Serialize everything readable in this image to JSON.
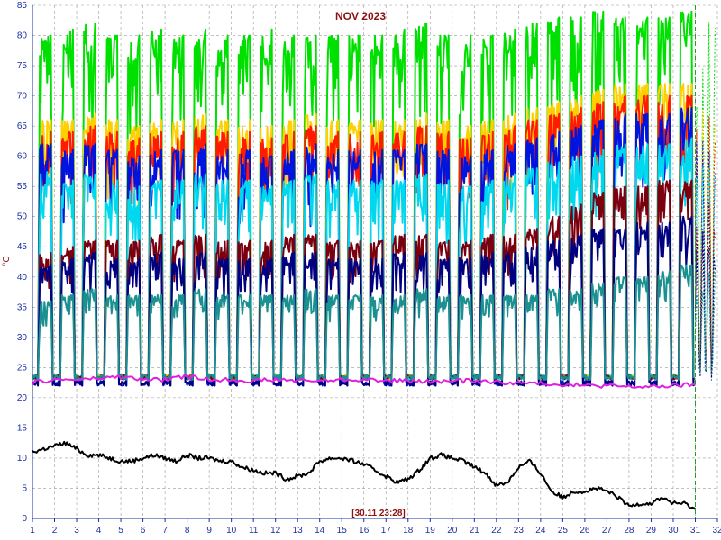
{
  "chart_data": {
    "type": "line",
    "title": "NOV 2023",
    "timestamp": "[30.11 23:28]",
    "ylabel": "°C",
    "xlabel": "",
    "xlim": [
      1,
      32
    ],
    "ylim": [
      0,
      85
    ],
    "x_ticks": [
      "1",
      "2",
      "3",
      "4",
      "5",
      "6",
      "7",
      "8",
      "9",
      "10",
      "11",
      "12",
      "13",
      "14",
      "15",
      "16",
      "17",
      "18",
      "19",
      "20",
      "21",
      "22",
      "23",
      "24",
      "25",
      "26",
      "27",
      "28",
      "29",
      "30",
      "31",
      "32"
    ],
    "y_ticks": [
      "0",
      "5",
      "10",
      "15",
      "20",
      "25",
      "30",
      "35",
      "40",
      "45",
      "50",
      "55",
      "60",
      "65",
      "70",
      "75",
      "80",
      "85"
    ],
    "grid": true,
    "legend": "none",
    "current_time_marker": 31,
    "series": [
      {
        "color": "#00e000",
        "style": "daily-cycle",
        "low": [
          23,
          23,
          23,
          23,
          23,
          23,
          23,
          23,
          23,
          23,
          23,
          23,
          23,
          23,
          23,
          23,
          23,
          23,
          23,
          23,
          23,
          23,
          23,
          23,
          23,
          23,
          23,
          23,
          23,
          23
        ],
        "high": [
          80,
          81,
          82,
          80,
          80,
          81,
          80,
          81,
          80,
          80,
          81,
          80,
          80,
          80,
          80,
          80,
          81,
          82,
          80,
          80,
          80,
          81,
          82,
          83,
          83,
          84,
          83,
          83,
          83,
          84
        ]
      },
      {
        "color": "#ffd000",
        "style": "daily-cycle",
        "low": [
          23,
          23,
          23,
          23,
          23,
          23,
          23,
          23,
          23,
          23,
          23,
          23,
          23,
          23,
          23,
          23,
          23,
          23,
          23,
          23,
          23,
          23,
          23,
          23,
          23,
          23,
          23,
          23,
          23,
          23
        ],
        "high": [
          66,
          66,
          67,
          66,
          65,
          66,
          66,
          67,
          66,
          66,
          65,
          66,
          67,
          66,
          66,
          66,
          66,
          67,
          66,
          65,
          66,
          67,
          68,
          69,
          70,
          71,
          72,
          72,
          72,
          72
        ]
      },
      {
        "color": "#ff1a00",
        "style": "daily-cycle",
        "low": [
          23,
          23,
          23,
          23,
          23,
          23,
          23,
          23,
          23,
          23,
          23,
          23,
          23,
          23,
          23,
          23,
          23,
          23,
          23,
          23,
          23,
          23,
          23,
          23,
          23,
          23,
          23,
          23,
          23,
          23
        ],
        "high": [
          64,
          64,
          65,
          64,
          63,
          64,
          64,
          65,
          64,
          64,
          63,
          64,
          65,
          64,
          64,
          64,
          64,
          65,
          64,
          63,
          64,
          65,
          66,
          67,
          68,
          69,
          70,
          70,
          70,
          70
        ]
      },
      {
        "color": "#0014e0",
        "style": "daily-cycle",
        "low": [
          23,
          22,
          22,
          22,
          22,
          22,
          22,
          22,
          22,
          22,
          22,
          22,
          22,
          22,
          22,
          22,
          22,
          22,
          22,
          22,
          22,
          22,
          22,
          22,
          22,
          22,
          22,
          22,
          22,
          22
        ],
        "high": [
          62,
          61,
          62,
          61,
          60,
          61,
          61,
          62,
          61,
          61,
          60,
          61,
          62,
          61,
          61,
          61,
          61,
          62,
          61,
          60,
          61,
          62,
          63,
          64,
          65,
          66,
          67,
          67,
          67,
          68
        ]
      },
      {
        "color": "#00d8f0",
        "style": "daily-cycle",
        "low": [
          23,
          23,
          23,
          23,
          23,
          23,
          23,
          23,
          23,
          23,
          23,
          23,
          23,
          23,
          23,
          23,
          23,
          23,
          23,
          23,
          23,
          23,
          23,
          23,
          23,
          23,
          23,
          23,
          23,
          23
        ],
        "high": [
          58,
          56,
          57,
          56,
          55,
          56,
          56,
          57,
          56,
          56,
          55,
          56,
          57,
          56,
          56,
          56,
          56,
          57,
          56,
          55,
          56,
          57,
          58,
          59,
          60,
          61,
          62,
          62,
          62,
          63
        ]
      },
      {
        "color": "#7a0010",
        "style": "daily-cycle",
        "low": [
          23,
          23,
          23,
          23,
          23,
          23,
          23,
          23,
          23,
          23,
          23,
          23,
          23,
          23,
          23,
          23,
          23,
          23,
          23,
          23,
          23,
          23,
          23,
          23,
          23,
          23,
          23,
          23,
          23,
          23
        ],
        "high": [
          44,
          45,
          46,
          46,
          46,
          47,
          46,
          47,
          46,
          46,
          46,
          47,
          47,
          46,
          46,
          46,
          47,
          47,
          46,
          46,
          47,
          47,
          48,
          50,
          52,
          54,
          55,
          55,
          56,
          56
        ]
      },
      {
        "color": "#000080",
        "style": "daily-cycle",
        "low": [
          22,
          22,
          22,
          22,
          22,
          22,
          22,
          22,
          22,
          22,
          22,
          22,
          22,
          22,
          22,
          22,
          22,
          22,
          22,
          22,
          22,
          22,
          22,
          22,
          22,
          22,
          22,
          22,
          22,
          22
        ],
        "high": [
          42,
          43,
          44,
          43,
          43,
          44,
          43,
          44,
          43,
          43,
          43,
          44,
          44,
          43,
          43,
          43,
          44,
          44,
          43,
          43,
          44,
          44,
          45,
          46,
          47,
          48,
          48,
          49,
          49,
          50
        ]
      },
      {
        "color": "#1a9090",
        "style": "daily-cycle",
        "low": [
          23,
          23,
          23,
          23,
          23,
          23,
          23,
          23,
          23,
          23,
          23,
          23,
          23,
          23,
          23,
          23,
          23,
          23,
          23,
          23,
          23,
          23,
          23,
          23,
          23,
          23,
          23,
          23,
          23,
          23
        ],
        "high": [
          36,
          37,
          38,
          37,
          37,
          37,
          37,
          38,
          37,
          37,
          37,
          37,
          38,
          37,
          37,
          37,
          37,
          38,
          37,
          37,
          37,
          37,
          37,
          38,
          38,
          39,
          40,
          40,
          41,
          42
        ]
      },
      {
        "color": "#e020e0",
        "style": "steady",
        "x": [
          1,
          2,
          3,
          4,
          5,
          6,
          7,
          8,
          9,
          10,
          11,
          12,
          13,
          14,
          15,
          16,
          17,
          18,
          19,
          20,
          21,
          22,
          23,
          24,
          25,
          26,
          27,
          28,
          29,
          30,
          31
        ],
        "y": [
          22.5,
          23.0,
          23.0,
          23.2,
          23.5,
          23.0,
          23.0,
          23.5,
          23.0,
          23.0,
          22.8,
          23.0,
          22.8,
          22.8,
          23.0,
          23.0,
          22.8,
          22.8,
          22.6,
          22.8,
          22.8,
          22.6,
          22.4,
          22.4,
          22.2,
          22.0,
          22.0,
          21.8,
          21.8,
          22.0,
          22.2
        ]
      },
      {
        "color": "#000000",
        "style": "steady",
        "x": [
          1,
          1.5,
          2,
          2.5,
          3,
          3.5,
          4,
          4.5,
          5,
          5.5,
          6,
          6.5,
          7,
          7.5,
          8,
          8.5,
          9,
          9.5,
          10,
          10.5,
          11,
          11.5,
          12,
          12.5,
          13,
          13.5,
          14,
          14.5,
          15,
          15.5,
          16,
          16.5,
          17,
          17.5,
          18,
          18.5,
          19,
          19.5,
          20,
          20.5,
          21,
          21.5,
          22,
          22.5,
          23,
          23.5,
          24,
          24.5,
          25,
          25.5,
          26,
          26.5,
          27,
          27.5,
          28,
          28.5,
          29,
          29.5,
          30,
          30.5,
          31
        ],
        "y": [
          11,
          11.5,
          12,
          12.5,
          11.5,
          10.5,
          10.5,
          10,
          9.5,
          9.5,
          10,
          10.5,
          10,
          9.5,
          10.5,
          10,
          10,
          9.5,
          9.5,
          8.5,
          8,
          7.5,
          7.5,
          6.5,
          7,
          7.5,
          9.5,
          10,
          10,
          9.5,
          9,
          8,
          7,
          6,
          6.5,
          8,
          10,
          10.5,
          10,
          9.5,
          8.5,
          7.5,
          5.5,
          6,
          8.5,
          9.5,
          7.5,
          4.5,
          3.5,
          4.5,
          4.5,
          5,
          4.5,
          3.5,
          2,
          2.5,
          2.5,
          3.5,
          2.5,
          2.5,
          1.5
        ]
      }
    ]
  }
}
